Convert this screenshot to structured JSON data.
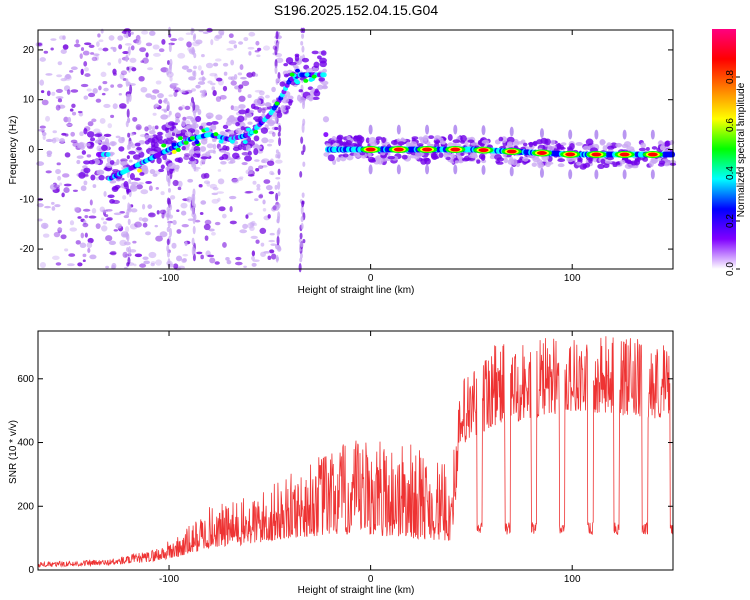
{
  "title": "S196.2025.152.04.15.G04",
  "chart_data": [
    {
      "type": "heatmap",
      "xlabel": "Height of straight line (km)",
      "ylabel": "Frequency (Hz)",
      "xlim": [
        -165,
        150
      ],
      "ylim": [
        -24,
        24
      ],
      "x_ticks": [
        -100,
        0,
        100
      ],
      "y_ticks": [
        -20,
        -10,
        0,
        10,
        20
      ],
      "colorbar": {
        "label": "Normalized spectral amplitude",
        "range": [
          0,
          1
        ],
        "ticks": [
          "0.0",
          "0.2",
          "0.4",
          "0.6",
          "0.8"
        ],
        "colormap": [
          "#ffffff",
          "#8000ff",
          "#0000ff",
          "#00ffff",
          "#00ff00",
          "#ffff00",
          "#ff8000",
          "#ff0000",
          "#ff0080"
        ]
      },
      "ridge": {
        "description_points": [
          {
            "x": -130,
            "y": -6
          },
          {
            "x": -120,
            "y": -4
          },
          {
            "x": -110,
            "y": -2
          },
          {
            "x": -100,
            "y": 0
          },
          {
            "x": -90,
            "y": 2
          },
          {
            "x": -80,
            "y": 3
          },
          {
            "x": -70,
            "y": 2
          },
          {
            "x": -60,
            "y": 3
          },
          {
            "x": -50,
            "y": 7
          },
          {
            "x": -45,
            "y": 10
          },
          {
            "x": -40,
            "y": 14
          },
          {
            "x": -35,
            "y": 15
          },
          {
            "x": -28,
            "y": 15
          },
          {
            "x": -23,
            "y": 15
          },
          {
            "x": -22,
            "y": 0
          },
          {
            "x": 0,
            "y": 0
          },
          {
            "x": 50,
            "y": 0
          },
          {
            "x": 100,
            "y": -1
          },
          {
            "x": 150,
            "y": -1
          }
        ],
        "peak_positions": [
          0,
          14,
          28,
          42,
          56,
          70,
          85,
          99,
          112,
          126,
          140
        ]
      },
      "vertical_streaks": [
        -120,
        -100,
        -88,
        -46,
        -34
      ]
    },
    {
      "type": "line",
      "xlabel": "Height of straight line (km)",
      "ylabel": "SNR (10 * v/v)",
      "xlim": [
        -165,
        150
      ],
      "ylim": [
        0,
        750
      ],
      "x_ticks": [
        -100,
        0,
        100
      ],
      "y_ticks": [
        0,
        200,
        400,
        600
      ],
      "color": "#ee3333",
      "envelope": [
        {
          "x": -165,
          "base": 10,
          "peak": 25
        },
        {
          "x": -130,
          "base": 15,
          "peak": 35
        },
        {
          "x": -110,
          "base": 25,
          "peak": 60
        },
        {
          "x": -95,
          "base": 40,
          "peak": 110
        },
        {
          "x": -80,
          "base": 70,
          "peak": 200
        },
        {
          "x": -60,
          "base": 80,
          "peak": 230
        },
        {
          "x": -40,
          "base": 100,
          "peak": 300
        },
        {
          "x": -20,
          "base": 110,
          "peak": 390
        },
        {
          "x": 0,
          "base": 110,
          "peak": 420
        },
        {
          "x": 20,
          "base": 100,
          "peak": 400
        },
        {
          "x": 40,
          "base": 90,
          "peak": 320
        },
        {
          "x": 45,
          "base": 380,
          "peak": 600
        },
        {
          "x": 60,
          "base": 450,
          "peak": 720
        },
        {
          "x": 100,
          "base": 500,
          "peak": 740
        },
        {
          "x": 150,
          "base": 470,
          "peak": 720
        }
      ],
      "dips": {
        "positions": [
          54,
          68,
          81,
          95,
          109,
          122,
          136,
          150
        ],
        "value": 110
      }
    }
  ]
}
